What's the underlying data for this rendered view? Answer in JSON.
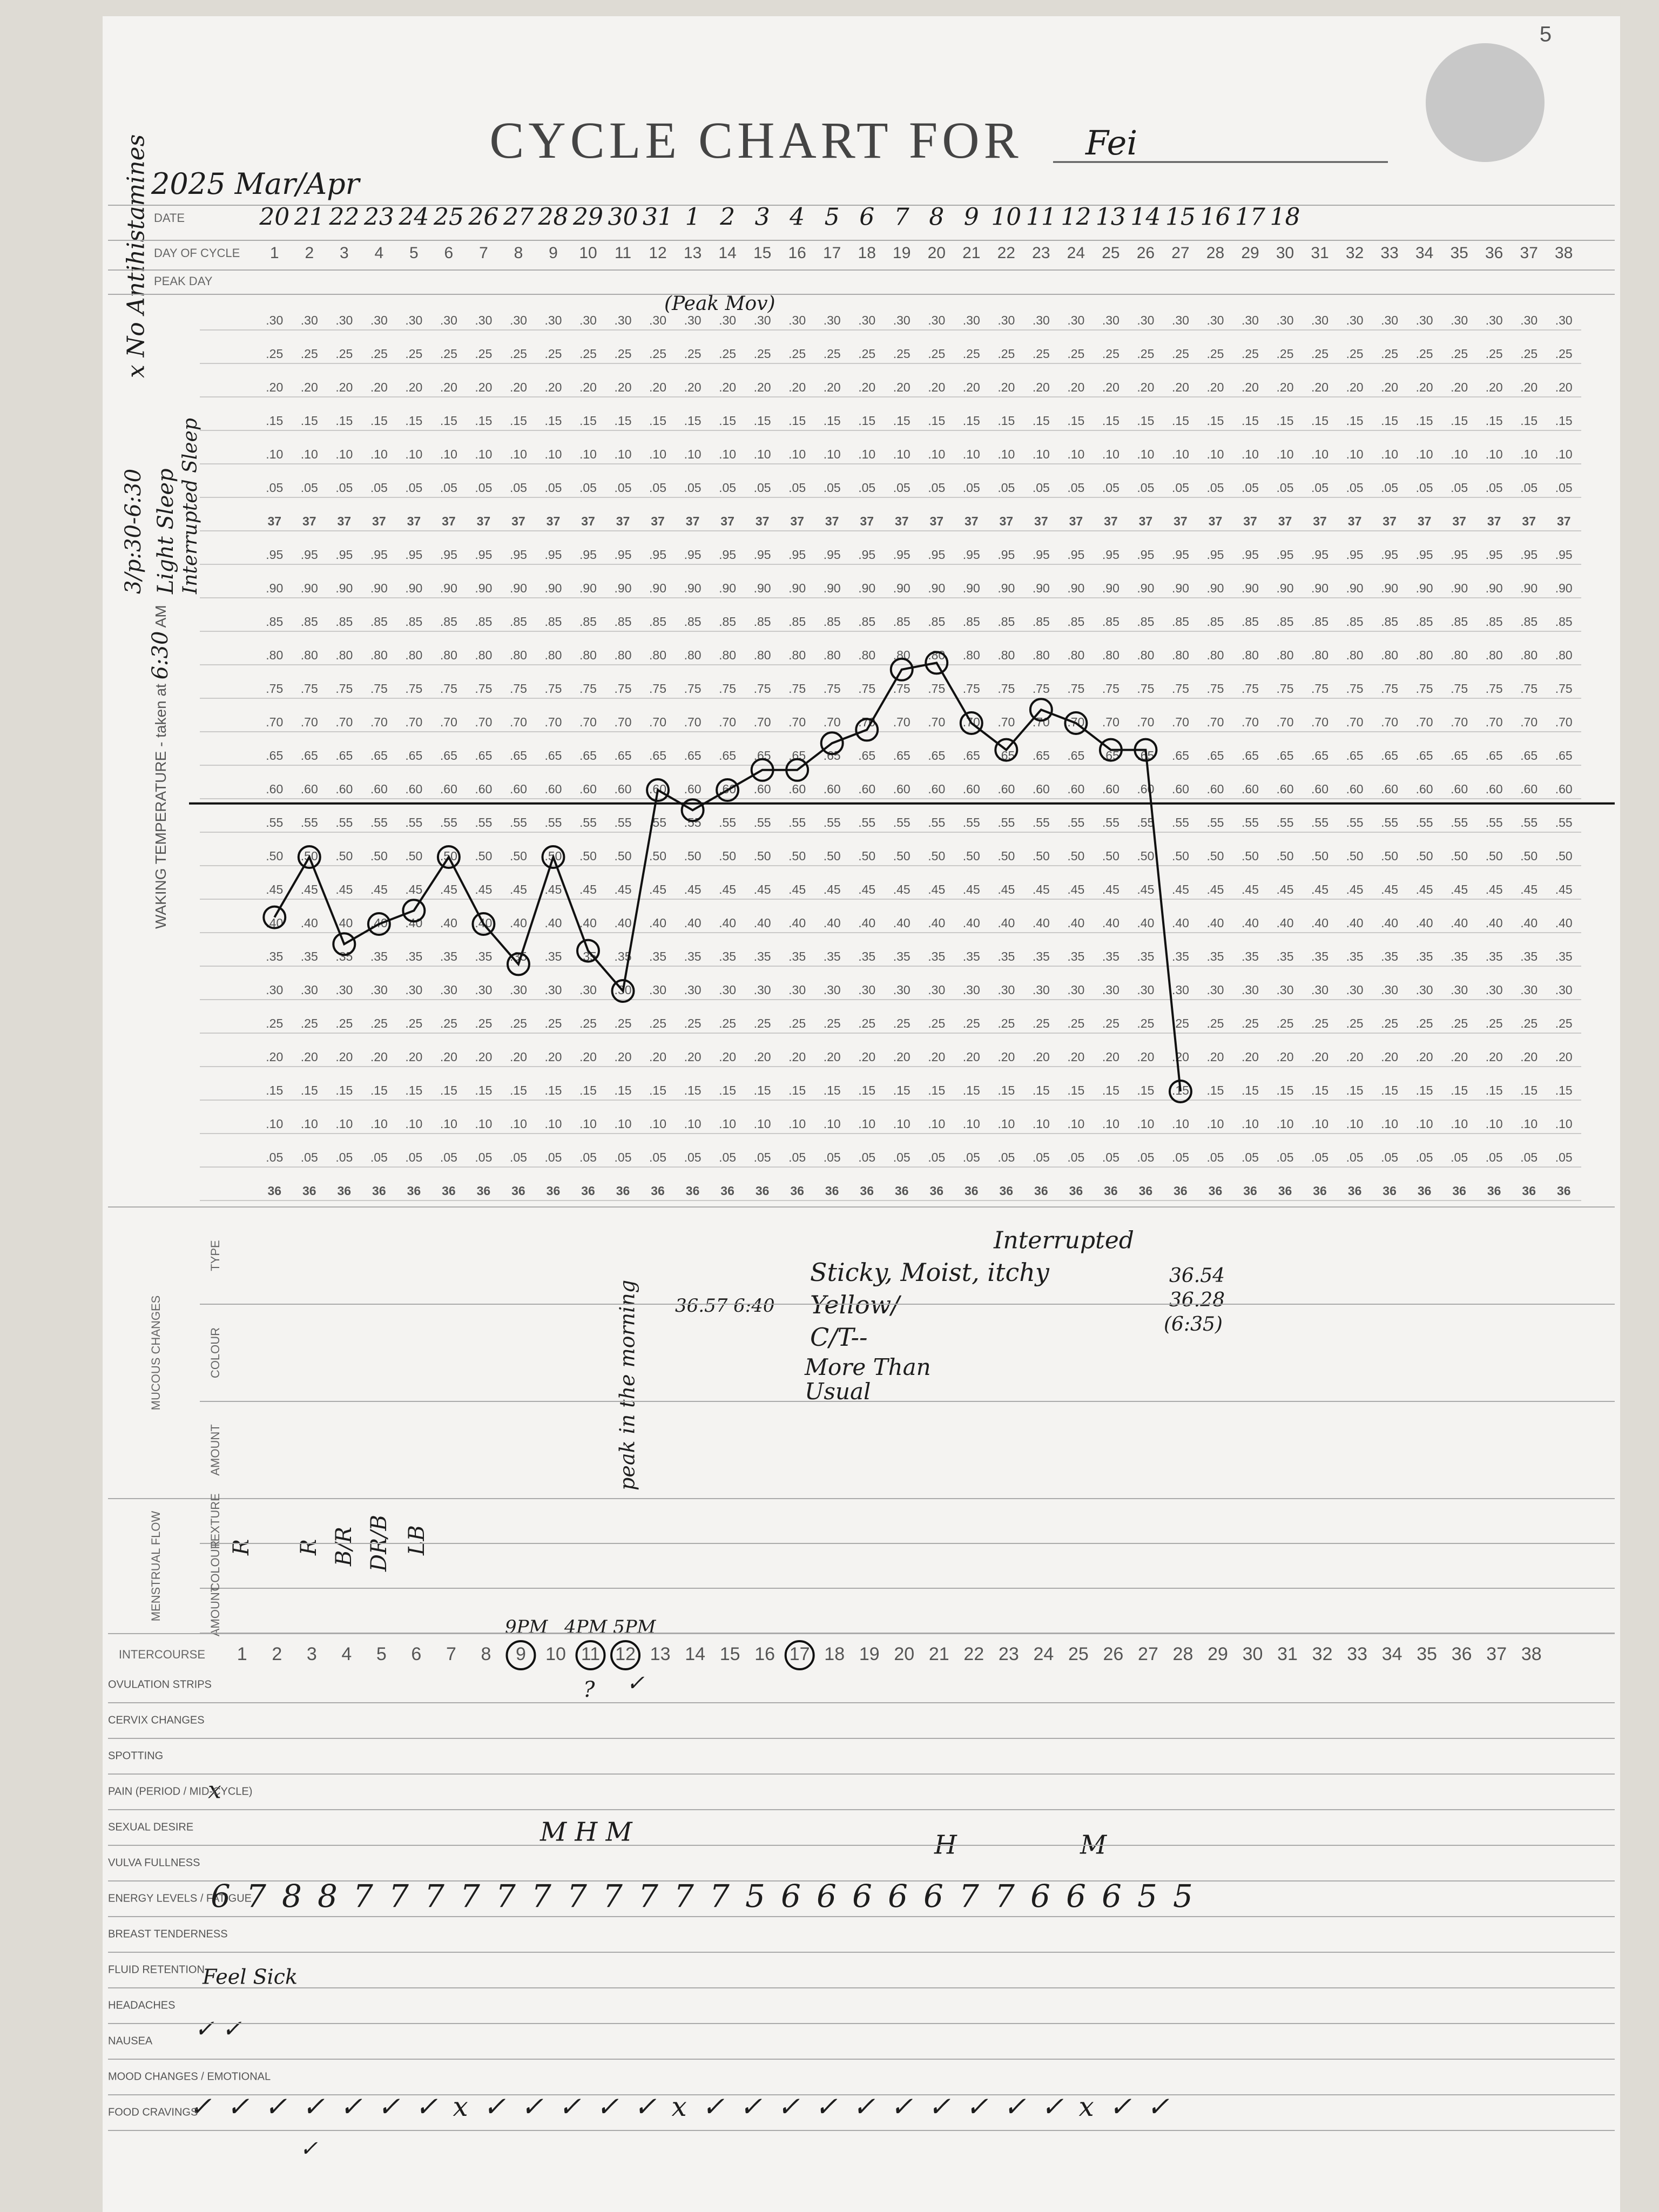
{
  "page_number": "5",
  "header": {
    "title": "CYCLE CHART FOR",
    "name": "Fei",
    "period": "2025 Mar/Apr"
  },
  "margin_notes": [
    "x No Antihistamines",
    "3/p:30-6:30",
    "Light Sleep",
    "Interrupted Sleep"
  ],
  "rows": {
    "date": "DATE",
    "day_of_cycle": "DAY OF CYCLE",
    "peak_day": "PEAK DAY"
  },
  "dates": [
    20,
    21,
    22,
    23,
    24,
    25,
    26,
    27,
    28,
    29,
    30,
    31,
    1,
    2,
    3,
    4,
    5,
    6,
    7,
    8,
    9,
    10,
    11,
    12,
    13,
    14,
    15,
    16,
    17,
    18
  ],
  "days": [
    1,
    2,
    3,
    4,
    5,
    6,
    7,
    8,
    9,
    10,
    11,
    12,
    13,
    14,
    15,
    16,
    17,
    18,
    19,
    20,
    21,
    22,
    23,
    24,
    25,
    26,
    27,
    28,
    29,
    30,
    31,
    32,
    33,
    34,
    35,
    36,
    37,
    38
  ],
  "peak_note": "(Peak Mov)",
  "temperature": {
    "label": "WAKING TEMPERATURE - taken at",
    "time": "6:30",
    "unit": "AM",
    "ylim": [
      36,
      37.3
    ],
    "yticks": [
      36,
      {
        "value": 36.05,
        "label": ".05"
      },
      {
        "value": 36.1,
        "label": ".10"
      },
      {
        "value": 36.15,
        "label": ".15"
      },
      {
        "value": 36.2,
        "label": ".20"
      },
      {
        "value": 36.25,
        "label": ".25"
      },
      {
        "value": 36.3,
        "label": ".30"
      },
      {
        "value": 36.35,
        "label": ".35"
      },
      {
        "value": 36.4,
        "label": ".40"
      },
      {
        "value": 36.45,
        "label": ".45"
      },
      {
        "value": 36.5,
        "label": ".50"
      },
      {
        "value": 36.55,
        "label": ".55"
      },
      {
        "value": 36.6,
        "label": ".60"
      },
      {
        "value": 36.65,
        "label": ".65"
      },
      {
        "value": 36.7,
        "label": ".70"
      },
      {
        "value": 36.75,
        "label": ".75"
      },
      {
        "value": 36.8,
        "label": ".80"
      },
      {
        "value": 36.85,
        "label": ".85"
      },
      {
        "value": 36.9,
        "label": ".90"
      },
      {
        "value": 36.95,
        "label": ".95"
      },
      37,
      {
        "value": 37.05,
        "label": ".05"
      },
      {
        "value": 37.1,
        "label": ".10"
      },
      {
        "value": 37.15,
        "label": ".15"
      },
      {
        "value": 37.2,
        "label": ".20"
      },
      {
        "value": 37.25,
        "label": ".25"
      },
      {
        "value": 37.3,
        "label": ".30"
      }
    ],
    "values": [
      36.41,
      36.5,
      36.37,
      36.4,
      36.42,
      36.5,
      36.4,
      36.34,
      36.5,
      36.36,
      36.3,
      36.6,
      36.57,
      36.6,
      36.63,
      36.63,
      36.67,
      36.69,
      36.78,
      36.79,
      36.7,
      36.66,
      36.72,
      36.7,
      36.66,
      36.66,
      36.15
    ],
    "coverline": 36.58
  },
  "mucous": {
    "title": "MUCOUS CHANGES",
    "rows": [
      "TYPE",
      "COLOUR",
      "AMOUNT"
    ],
    "notes": [
      "Sticky, Moist, itchy",
      "Yellow/",
      "C/T--",
      "More Than",
      "Usual",
      "Interrupted",
      "36.57 6:40",
      "peak in the morning",
      "36.54",
      "36.28",
      "(6:35)"
    ]
  },
  "menstrual": {
    "title": "MENSTRUAL FLOW",
    "rows": [
      "TEXTURE",
      "COLOUR",
      "AMOUNT"
    ],
    "notes": [
      "R",
      "R",
      "B/R",
      "DR/B",
      "LB"
    ]
  },
  "intercourse": {
    "label": "INTERCOURSE",
    "circled_days": [
      9,
      11,
      12,
      17
    ],
    "times": [
      "9PM",
      "4PM 5PM"
    ],
    "strips": [
      "?",
      "✓"
    ]
  },
  "other_rows": [
    "OVULATION STRIPS",
    "CERVIX CHANGES",
    "SPOTTING",
    "PAIN (PERIOD / MID-CYCLE)",
    "SEXUAL DESIRE",
    "VULVA FULLNESS",
    "ENERGY LEVELS / FATIGUE",
    "BREAST TENDERNESS",
    "FLUID RETENTION",
    "HEADACHES",
    "NAUSEA",
    "MOOD CHANGES / EMOTIONAL",
    "FOOD CRAVINGS"
  ],
  "pain": "x",
  "sexual_desire": [
    "M H M",
    "H",
    "M"
  ],
  "energy": [
    6,
    7,
    8,
    8,
    7,
    7,
    7,
    7,
    7,
    7,
    7,
    7,
    7,
    7,
    7,
    5,
    6,
    6,
    6,
    6,
    6,
    7,
    7,
    6,
    6,
    6,
    5,
    5
  ],
  "fluid_retention": "Feel Sick",
  "headaches": "✓ ✓",
  "mood": "✓ ✓ ✓ ✓ ✓ ✓ ✓ x ✓ ✓ ✓ ✓ ✓ x ✓ ✓ ✓ ✓ ✓ ✓ ✓ ✓ ✓ ✓ x ✓ ✓",
  "food_cravings": "✓"
}
